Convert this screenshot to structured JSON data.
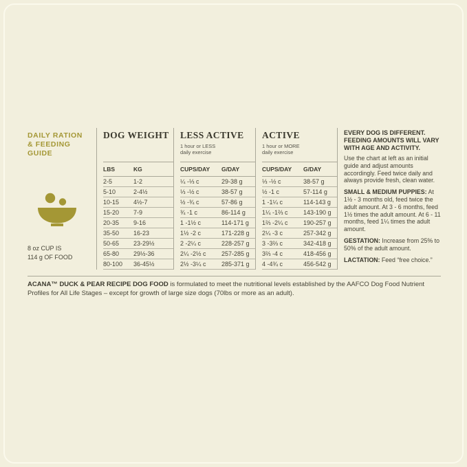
{
  "colors": {
    "background": "#f2efdd",
    "accent_gold": "#a49735",
    "rule_gray": "#a9a798",
    "text_dark": "#3b392e"
  },
  "guide": {
    "title": "DAILY RATION\n& FEEDING\nGUIDE",
    "bowl_icon": "bowl-with-kibble-icon",
    "cup_note": "8 oz CUP IS\n114 g OF FOOD"
  },
  "table": {
    "weight_header": "DOG WEIGHT",
    "less_active_header": "LESS ACTIVE",
    "less_active_sub": "1 hour or LESS\ndaily exercise",
    "active_header": "ACTIVE",
    "active_sub": "1 hour or MORE\ndaily exercise",
    "columns": {
      "lbs": "LBS",
      "kg": "KG",
      "cups": "CUPS/DAY",
      "grams": "G/DAY"
    },
    "rows": [
      {
        "lbs": "2-5",
        "kg": "1-2",
        "la_cups": "¼ -⅓ c",
        "la_g": "29-38 g",
        "a_cups": "⅓ -½ c",
        "a_g": "38-57 g"
      },
      {
        "lbs": "5-10",
        "kg": "2-4½",
        "la_cups": "⅓ -½ c",
        "la_g": "38-57 g",
        "a_cups": "½ -1 c",
        "a_g": "57-114 g"
      },
      {
        "lbs": "10-15",
        "kg": "4½-7",
        "la_cups": "½ -¾ c",
        "la_g": "57-86 g",
        "a_cups": "1 -1¼ c",
        "a_g": "114-143 g"
      },
      {
        "lbs": "15-20",
        "kg": "7-9",
        "la_cups": "¾ -1 c",
        "la_g": "86-114 g",
        "a_cups": "1¼ -1⅔ c",
        "a_g": "143-190 g"
      },
      {
        "lbs": "20-35",
        "kg": "9-16",
        "la_cups": "1 -1½ c",
        "la_g": "114-171 g",
        "a_cups": "1⅔ -2¼ c",
        "a_g": "190-257 g"
      },
      {
        "lbs": "35-50",
        "kg": "16-23",
        "la_cups": "1½ -2 c",
        "la_g": "171-228 g",
        "a_cups": "2¼ -3 c",
        "a_g": "257-342 g"
      },
      {
        "lbs": "50-65",
        "kg": "23-29½",
        "la_cups": "2 -2¼ c",
        "la_g": "228-257 g",
        "a_cups": "3 -3⅔ c",
        "a_g": "342-418 g"
      },
      {
        "lbs": "65-80",
        "kg": "29½-36",
        "la_cups": "2¼ -2½ c",
        "la_g": "257-285 g",
        "a_cups": "3⅔ -4 c",
        "a_g": "418-456 g"
      },
      {
        "lbs": "80-100",
        "kg": "36-45½",
        "la_cups": "2½ -3¼ c",
        "la_g": "285-371 g",
        "a_cups": "4 -4¾ c",
        "a_g": "456-542 g"
      }
    ]
  },
  "notes": {
    "heading": "EVERY DOG IS DIFFERENT. FEEDING AMOUNTS WILL VARY WITH AGE AND ACTIVITY.",
    "intro": "Use the chart at left as an initial guide and adjust amounts accordingly. Feed twice daily and always provide fresh, clean water.",
    "puppies_label": "SMALL & MEDIUM PUPPIES:",
    "puppies_text": " At 1½ - 3 months old, feed twice the adult amount. At 3 - 6 months, feed 1½ times the adult amount. At 6 - 11 months, feed 1¼ times the adult amount.",
    "gestation_label": "GESTATION:",
    "gestation_text": " Increase from 25% to 50% of the adult amount.",
    "lactation_label": "LACTATION:",
    "lactation_text": " Feed “free choice.”"
  },
  "footer": {
    "bold": "ACANA™ DUCK & PEAR RECIPE DOG FOOD",
    "text": " is formulated to meet the nutritional levels established by the AAFCO Dog Food Nutrient Profiles for All Life Stages – except for growth of large size dogs (70lbs or more as an adult)."
  }
}
